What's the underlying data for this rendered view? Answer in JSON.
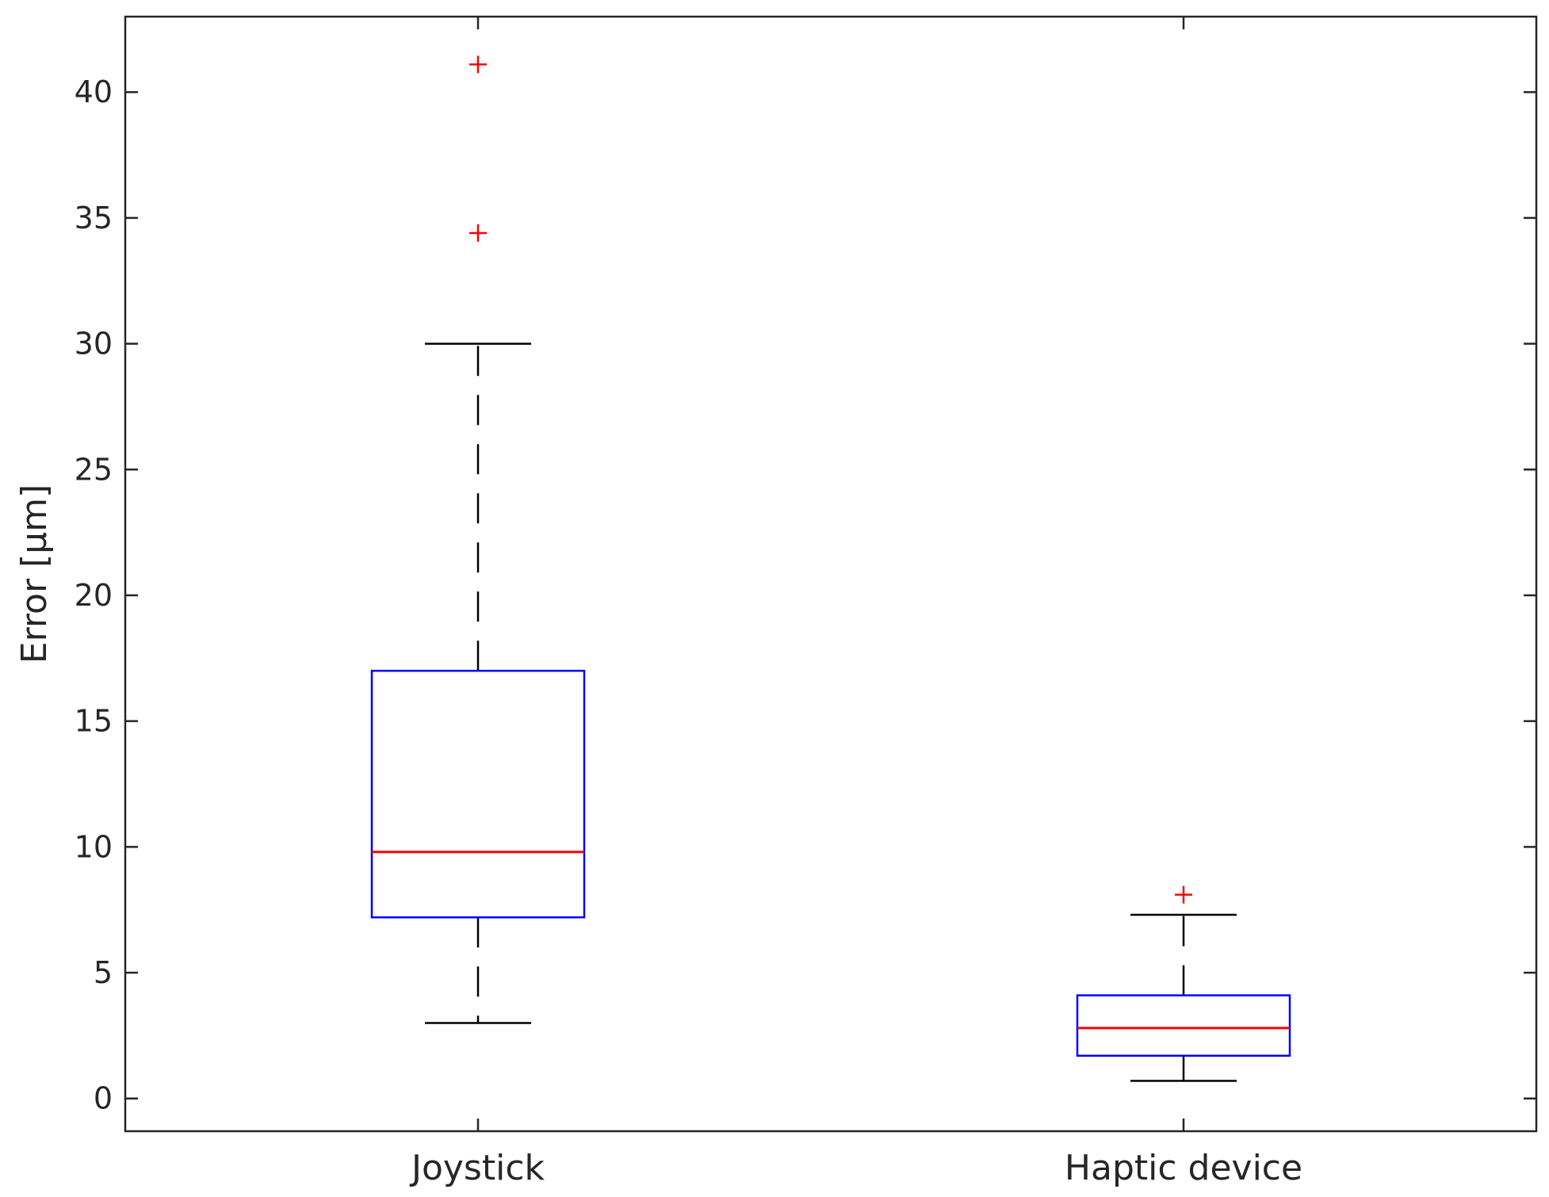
{
  "chart_data": {
    "type": "box",
    "title": "",
    "xlabel": "",
    "ylabel": "Error [µm]",
    "ylim": [
      -1.3,
      43
    ],
    "yticks": [
      0,
      5,
      10,
      15,
      20,
      25,
      30,
      35,
      40
    ],
    "ytick_labels": [
      "0",
      "5",
      "10",
      "15",
      "20",
      "25",
      "30",
      "35",
      "40"
    ],
    "grid": false,
    "categories": [
      "Joystick",
      "Haptic device"
    ],
    "boxes": [
      {
        "category": "Joystick",
        "whisker_low": 3.0,
        "q1": 7.2,
        "median": 9.8,
        "q3": 17.0,
        "whisker_high": 30.0,
        "outliers": [
          41.1,
          34.4
        ]
      },
      {
        "category": "Haptic device",
        "whisker_low": 0.7,
        "q1": 1.7,
        "median": 2.8,
        "q3": 4.1,
        "whisker_high": 7.3,
        "outliers": [
          8.1
        ]
      }
    ],
    "colors": {
      "box": "#0000ff",
      "median": "#ff0000",
      "whisker": "#000000",
      "outlier": "#ff0000",
      "axes": "#262626"
    }
  }
}
